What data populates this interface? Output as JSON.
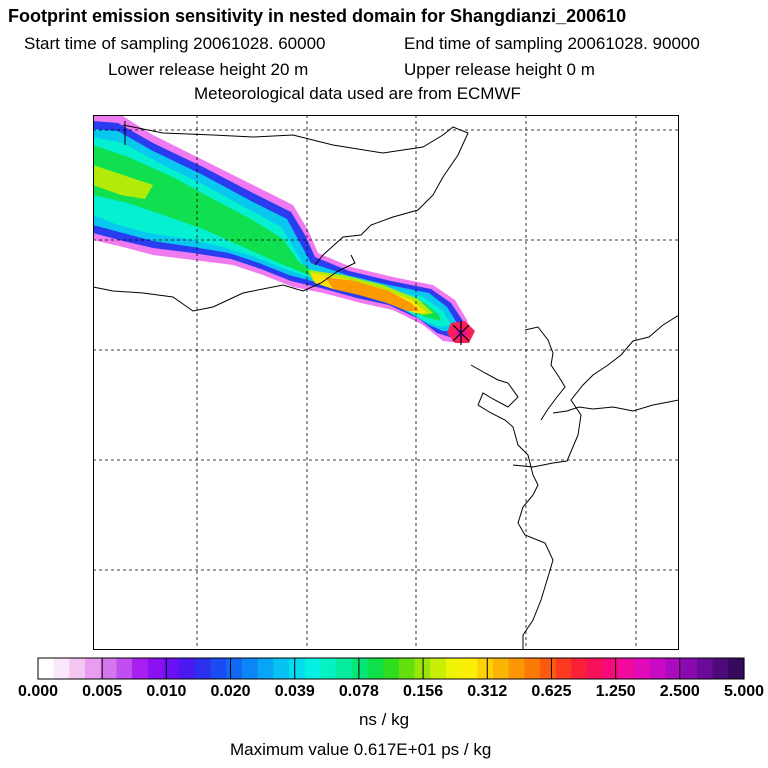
{
  "header": {
    "title": "Footprint emission sensitivity in nested domain for Shangdianzi_200610",
    "start_label": "Start time of sampling 20061028. 60000",
    "end_label": "End time of sampling 20061028. 90000",
    "lower_label": "Lower release height   20 m",
    "upper_label": "Upper release height    0 m",
    "met_label": "Meteorological data used are from ECMWF"
  },
  "colorbar": {
    "tick_labels": [
      "0.000",
      "0.005",
      "0.010",
      "0.020",
      "0.039",
      "0.078",
      "0.156",
      "0.312",
      "0.625",
      "1.250",
      "2.500",
      "5.000"
    ],
    "colors": [
      "#ffffff",
      "#fbe7fb",
      "#f4c6f4",
      "#ea9cf0",
      "#d576ee",
      "#c14ef0",
      "#a91ef0",
      "#8b10f2",
      "#6a10f5",
      "#4a18f0",
      "#2c30ec",
      "#1a4cf2",
      "#1268f4",
      "#0c86f6",
      "#08a4f6",
      "#06c2f2",
      "#05dcee",
      "#04f0e2",
      "#04f2c2",
      "#04ec9c",
      "#06e676",
      "#0ee04a",
      "#2ede1e",
      "#64e00c",
      "#9ae608",
      "#caee06",
      "#eef404",
      "#fcee04",
      "#fcd204",
      "#fcb404",
      "#fc9604",
      "#fc7a08",
      "#fc5a10",
      "#fc3a20",
      "#fa2038",
      "#f8105a",
      "#f60a7e",
      "#f00aa0",
      "#e00ab8",
      "#c80ac4",
      "#aa0ac0",
      "#8a0ab2",
      "#6a0a98",
      "#4e0a7a",
      "#380a5e"
    ],
    "unit": "ns / kg"
  },
  "max_value_text": "Maximum value  0.617E+01 ps / kg",
  "plume_colors": {
    "outer": "#f07af0",
    "blue": "#2a3cf0",
    "cyan": "#08c8f0",
    "teal": "#04f0d0",
    "green": "#10e050",
    "yellowgreen": "#b4ea08",
    "yellow": "#fce404",
    "orange": "#fc9a04",
    "red": "#f8205a",
    "magenta": "#e80ab4"
  }
}
